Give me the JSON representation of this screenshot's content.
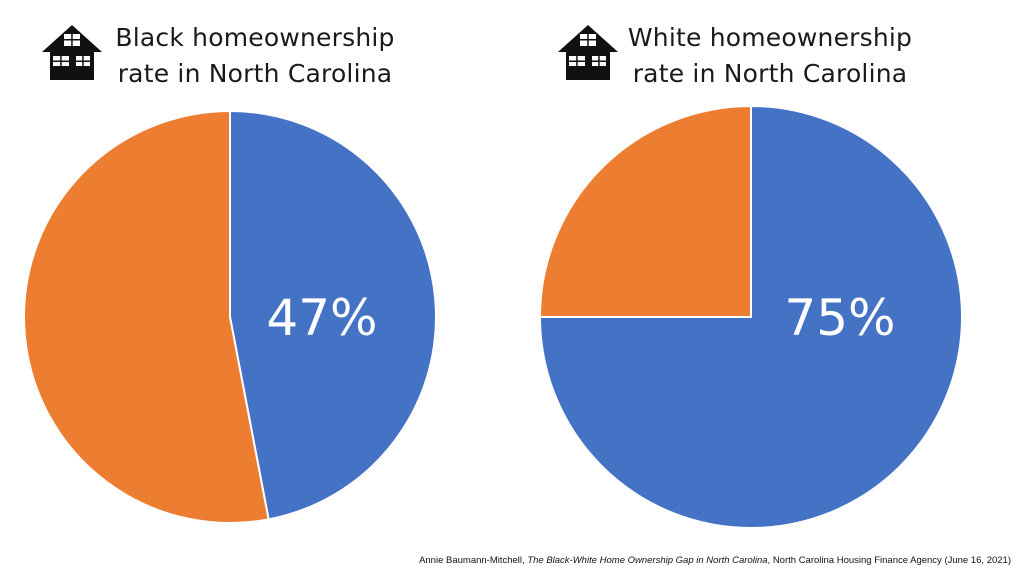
{
  "colors": {
    "share": "#4472C4",
    "remainder": "#ED7D31",
    "label": "#FFFFFF"
  },
  "icon": "house-icon",
  "chart_data": [
    {
      "type": "pie",
      "title": "Black homeownership rate in North Carolina",
      "title_lines": [
        "Black homeownership",
        "rate in North Carolina"
      ],
      "values": [
        47,
        53
      ],
      "label": "47%"
    },
    {
      "type": "pie",
      "title": "White homeownership rate in North Carolina",
      "title_lines": [
        "White homeownership",
        "rate in North Carolina"
      ],
      "values": [
        75,
        25
      ],
      "label": "75%"
    }
  ],
  "citation": {
    "author": "Annie Baumann-Mitchell, ",
    "work": "The Black-White Home Ownership Gap in North Carolina",
    "publisher": ", North Carolina Housing Finance Agency (June 16, 2021)"
  }
}
